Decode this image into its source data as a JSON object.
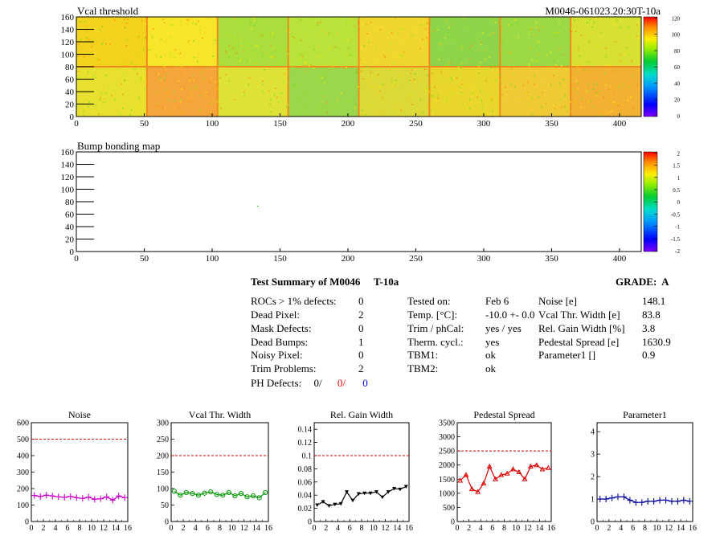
{
  "maps": [
    {
      "title": "Vcal threshold",
      "module_label": "M0046-061023.20:30T-10a",
      "x_ticks": [
        0,
        50,
        100,
        150,
        200,
        250,
        300,
        350,
        400
      ],
      "y_ticks": [
        0,
        20,
        40,
        60,
        80,
        100,
        120,
        140,
        160
      ],
      "palette_labels": [
        "0",
        "20",
        "40",
        "60",
        "80",
        "100",
        "120"
      ]
    },
    {
      "title": "Bump bonding map",
      "x_ticks": [
        0,
        50,
        100,
        150,
        200,
        250,
        300,
        350,
        400
      ],
      "y_ticks": [
        0,
        20,
        40,
        60,
        80,
        100,
        120,
        140,
        160
      ],
      "palette_labels": [
        "-2",
        "-1.5",
        "-1",
        "-0.5",
        "0",
        "0.5",
        "1",
        "1.5",
        "2"
      ]
    }
  ],
  "summary": {
    "title": "Test Summary of M0046",
    "temp_label": "T-10a",
    "grade_label": "GRADE:",
    "grade": "A",
    "defects": [
      {
        "label": "ROCs > 1% defects:",
        "value": "0"
      },
      {
        "label": "Dead Pixel:",
        "value": "2"
      },
      {
        "label": "Mask Defects:",
        "value": "0"
      },
      {
        "label": "Dead Bumps:",
        "value": "1"
      },
      {
        "label": "Noisy Pixel:",
        "value": "0"
      },
      {
        "label": "Trim Problems:",
        "value": "2"
      }
    ],
    "ph_defects": {
      "label": "PH Defects:",
      "v1": "0/",
      "v2": "0/",
      "v3": "0",
      "color2": "#ff0000",
      "color3": "#0000cc"
    },
    "test_info": [
      {
        "label": "Tested on:",
        "value": "Feb 6"
      },
      {
        "label": "Temp. [°C]:",
        "value": "-10.0 +- 0.0"
      },
      {
        "label": "Trim / phCal:",
        "value": "yes / yes"
      },
      {
        "label": "Therm. cycl.:",
        "value": "yes"
      },
      {
        "label": "TBM1:",
        "value": "ok"
      },
      {
        "label": "TBM2:",
        "value": "ok"
      }
    ],
    "params": [
      {
        "label": "Noise [e]",
        "value": "148.1"
      },
      {
        "label": "Vcal Thr. Width [e]",
        "value": "83.8"
      },
      {
        "label": "Rel. Gain Width [%]",
        "value": "3.8"
      },
      {
        "label": "Pedestal Spread [e]",
        "value": "1630.9"
      },
      {
        "label": "Parameter1 []",
        "value": "0.9"
      }
    ]
  },
  "chart_data": [
    {
      "type": "line",
      "title": "Noise",
      "xlim": [
        0,
        16
      ],
      "ylim": [
        0,
        600
      ],
      "x_ticks": [
        "0",
        "2",
        "4",
        "6",
        "8",
        "10",
        "12",
        "14",
        "16"
      ],
      "y_ticks": [
        "0",
        "100",
        "200",
        "300",
        "400",
        "500",
        "600"
      ],
      "threshold": 500,
      "color": "#cc00cc",
      "marker": "cross",
      "x": [
        0.5,
        1.5,
        2.5,
        3.5,
        4.5,
        5.5,
        6.5,
        7.5,
        8.5,
        9.5,
        10.5,
        11.5,
        12.5,
        13.5,
        14.5,
        15.5
      ],
      "values": [
        158,
        152,
        160,
        155,
        150,
        147,
        152,
        145,
        140,
        148,
        135,
        138,
        150,
        130,
        155,
        145
      ]
    },
    {
      "type": "line",
      "title": "Vcal Thr. Width",
      "xlim": [
        0,
        16
      ],
      "ylim": [
        0,
        300
      ],
      "x_ticks": [
        "0",
        "2",
        "4",
        "6",
        "8",
        "10",
        "12",
        "14",
        "16"
      ],
      "y_ticks": [
        "0",
        "50",
        "100",
        "150",
        "200",
        "250",
        "300"
      ],
      "threshold": 200,
      "color": "#009900",
      "marker": "circle",
      "x": [
        0.5,
        1.5,
        2.5,
        3.5,
        4.5,
        5.5,
        6.5,
        7.5,
        8.5,
        9.5,
        10.5,
        11.5,
        12.5,
        13.5,
        14.5,
        15.5
      ],
      "values": [
        92,
        80,
        88,
        85,
        80,
        86,
        90,
        82,
        80,
        88,
        78,
        85,
        75,
        78,
        72,
        88
      ]
    },
    {
      "type": "line",
      "title": "Rel. Gain Width",
      "xlim": [
        0,
        16
      ],
      "ylim": [
        0,
        0.15
      ],
      "x_ticks": [
        "0",
        "2",
        "4",
        "6",
        "8",
        "10",
        "12",
        "14",
        "16"
      ],
      "y_ticks": [
        "0",
        "0.02",
        "0.04",
        "0.06",
        "0.08",
        "0.1",
        "0.12",
        "0.14"
      ],
      "threshold": 0.1,
      "color": "#000000",
      "marker": "triangle-down",
      "x": [
        0.5,
        1.5,
        2.5,
        3.5,
        4.5,
        5.5,
        6.5,
        7.5,
        8.5,
        9.5,
        10.5,
        11.5,
        12.5,
        13.5,
        14.5,
        15.5
      ],
      "values": [
        0.025,
        0.03,
        0.024,
        0.026,
        0.027,
        0.045,
        0.032,
        0.042,
        0.043,
        0.043,
        0.045,
        0.037,
        0.045,
        0.05,
        0.049,
        0.053
      ]
    },
    {
      "type": "line",
      "title": "Pedestal Spread",
      "xlim": [
        0,
        16
      ],
      "ylim": [
        0,
        3500
      ],
      "x_ticks": [
        "0",
        "2",
        "4",
        "6",
        "8",
        "10",
        "12",
        "14",
        "16"
      ],
      "y_ticks": [
        "0",
        "500",
        "1000",
        "1500",
        "2000",
        "2500",
        "3000",
        "3500"
      ],
      "threshold": 2500,
      "color": "#dd0000",
      "marker": "triangle-up",
      "x": [
        0.5,
        1.5,
        2.5,
        3.5,
        4.5,
        5.5,
        6.5,
        7.5,
        8.5,
        9.5,
        10.5,
        11.5,
        12.5,
        13.5,
        14.5,
        15.5
      ],
      "values": [
        1450,
        1650,
        1150,
        1050,
        1350,
        1950,
        1500,
        1650,
        1700,
        1850,
        1750,
        1500,
        1950,
        2000,
        1850,
        1900
      ]
    },
    {
      "type": "line",
      "title": "Parameter1",
      "xlim": [
        0,
        16
      ],
      "ylim": [
        0,
        4.4
      ],
      "x_ticks": [
        "0",
        "2",
        "4",
        "6",
        "8",
        "10",
        "12",
        "14",
        "16"
      ],
      "y_ticks": [
        "0",
        "1",
        "2",
        "3",
        "4"
      ],
      "threshold": null,
      "color": "#000099",
      "marker": "cross",
      "x": [
        0.5,
        1.5,
        2.5,
        3.5,
        4.5,
        5.5,
        6.5,
        7.5,
        8.5,
        9.5,
        10.5,
        11.5,
        12.5,
        13.5,
        14.5,
        15.5
      ],
      "values": [
        1.0,
        1.0,
        1.05,
        1.1,
        1.1,
        0.95,
        0.85,
        0.85,
        0.9,
        0.9,
        0.95,
        0.95,
        0.9,
        0.9,
        0.95,
        0.9
      ]
    }
  ]
}
